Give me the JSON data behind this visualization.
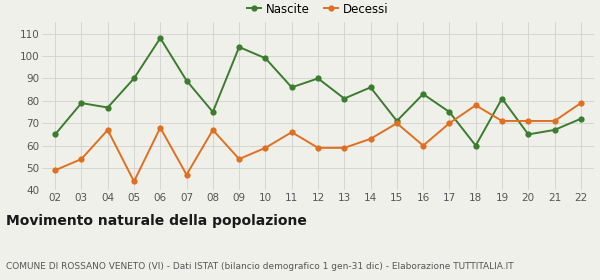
{
  "years": [
    "02",
    "03",
    "04",
    "05",
    "06",
    "07",
    "08",
    "09",
    "10",
    "11",
    "12",
    "13",
    "14",
    "15",
    "16",
    "17",
    "18",
    "19",
    "20",
    "21",
    "22"
  ],
  "nascite": [
    65,
    79,
    77,
    90,
    108,
    89,
    75,
    104,
    99,
    86,
    90,
    81,
    86,
    71,
    83,
    75,
    60,
    81,
    65,
    67,
    72
  ],
  "decessi": [
    49,
    54,
    67,
    44,
    68,
    47,
    67,
    54,
    59,
    66,
    59,
    59,
    63,
    70,
    60,
    70,
    78,
    71,
    71,
    71,
    79
  ],
  "nascite_color": "#3a7d2c",
  "decessi_color": "#e07020",
  "bg_color": "#f0f0eb",
  "grid_color": "#d0d0d0",
  "ylim": [
    40,
    115
  ],
  "yticks": [
    40,
    50,
    60,
    70,
    80,
    90,
    100,
    110
  ],
  "title": "Movimento naturale della popolazione",
  "subtitle": "COMUNE DI ROSSANO VENETO (VI) - Dati ISTAT (bilancio demografico 1 gen-31 dic) - Elaborazione TUTTITALIA.IT",
  "legend_nascite": "Nascite",
  "legend_decessi": "Decessi",
  "title_fontsize": 10,
  "subtitle_fontsize": 6.5,
  "tick_fontsize": 7.5,
  "legend_fontsize": 8.5,
  "marker_size": 4.5,
  "line_width": 1.4
}
